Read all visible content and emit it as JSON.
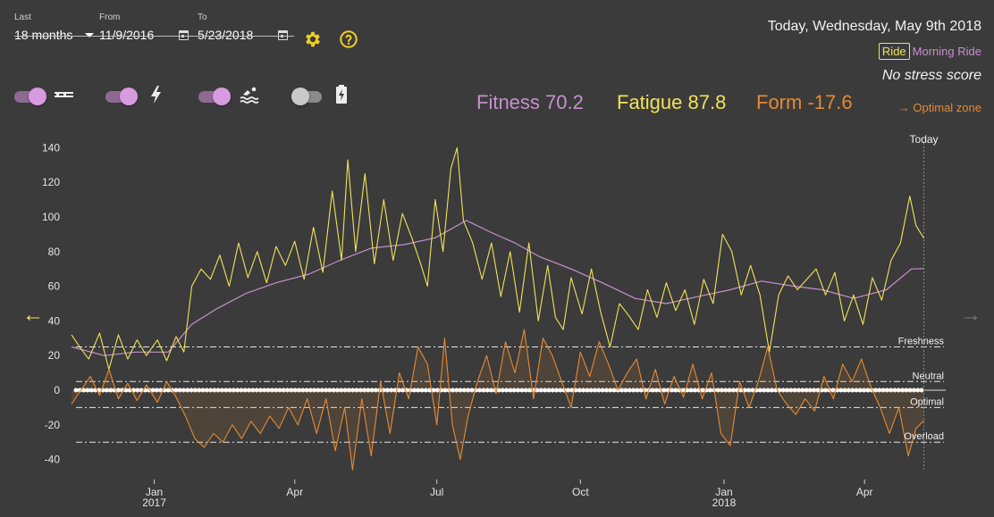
{
  "filters": {
    "last_label": "Last",
    "last_value": "18 months",
    "from_label": "From",
    "from_value": "11/9/2016",
    "to_label": "To",
    "to_value": "5/23/2018"
  },
  "toolbar": {
    "settings_icon": "gear-icon",
    "help_icon": "help-circle-icon"
  },
  "toggles": [
    {
      "icon": "cycling-icon",
      "on": true
    },
    {
      "icon": "running-icon",
      "on": true
    },
    {
      "icon": "swimming-icon",
      "on": true
    },
    {
      "icon": "battery-icon",
      "on": false
    }
  ],
  "header": {
    "today_text": "Today, Wednesday, May 9th 2018",
    "ride_badge": "Ride",
    "ride_title": "Morning Ride",
    "stress_text": "No stress score"
  },
  "metrics": {
    "fitness": "Fitness 70.2",
    "fatigue": "Fatigue 87.8",
    "form": "Form -17.6",
    "optimal_zone": "Optimal zone",
    "optimal_zone_icon": "arrow-right-icon"
  },
  "colors": {
    "fitness": "#c690cc",
    "fatigue": "#f0e25a",
    "form": "#e58a33",
    "background": "#3b3b3b"
  },
  "navigation": {
    "prev_icon": "arrow-left-icon",
    "next_icon": "arrow-right-icon"
  },
  "chart_data": {
    "type": "line",
    "x_axis_type": "date",
    "xlim": [
      "2016-11-09",
      "2018-05-23"
    ],
    "ylim": [
      -48,
      145
    ],
    "y_ticks": [
      140,
      120,
      100,
      80,
      60,
      40,
      20,
      0,
      -20,
      -40
    ],
    "x_ticks": [
      {
        "date": "2017-01-01",
        "label": "Jan",
        "sublabel": "2017"
      },
      {
        "date": "2017-04-01",
        "label": "Apr",
        "sublabel": ""
      },
      {
        "date": "2017-07-01",
        "label": "Jul",
        "sublabel": ""
      },
      {
        "date": "2017-10-01",
        "label": "Oct",
        "sublabel": ""
      },
      {
        "date": "2018-01-01",
        "label": "Jan",
        "sublabel": "2018"
      },
      {
        "date": "2018-04-01",
        "label": "Apr",
        "sublabel": ""
      }
    ],
    "today_marker": {
      "date": "2018-05-09",
      "label": "Today"
    },
    "zones": [
      {
        "label": "Freshness",
        "value": 25
      },
      {
        "label": "Neutral",
        "value": 5
      },
      {
        "label": "Optimal",
        "value": -10
      },
      {
        "label": "Overload",
        "value": -30
      }
    ],
    "series": [
      {
        "name": "Fitness",
        "color": "#c690cc",
        "points": [
          [
            "2016-11-09",
            25
          ],
          [
            "2016-11-30",
            20
          ],
          [
            "2016-12-20",
            22
          ],
          [
            "2017-01-10",
            22
          ],
          [
            "2017-01-25",
            38
          ],
          [
            "2017-02-10",
            47
          ],
          [
            "2017-03-01",
            56
          ],
          [
            "2017-03-20",
            62
          ],
          [
            "2017-04-10",
            67
          ],
          [
            "2017-04-30",
            75
          ],
          [
            "2017-05-20",
            82
          ],
          [
            "2017-06-10",
            84
          ],
          [
            "2017-06-30",
            88
          ],
          [
            "2017-07-20",
            98
          ],
          [
            "2017-08-05",
            91
          ],
          [
            "2017-08-20",
            85
          ],
          [
            "2017-09-05",
            77
          ],
          [
            "2017-09-25",
            70
          ],
          [
            "2017-10-15",
            62
          ],
          [
            "2017-11-05",
            53
          ],
          [
            "2017-11-25",
            50
          ],
          [
            "2017-12-15",
            54
          ],
          [
            "2018-01-05",
            58
          ],
          [
            "2018-01-25",
            63
          ],
          [
            "2018-02-15",
            60
          ],
          [
            "2018-03-05",
            58
          ],
          [
            "2018-03-25",
            53
          ],
          [
            "2018-04-15",
            58
          ],
          [
            "2018-05-01",
            70
          ],
          [
            "2018-05-09",
            70.2
          ]
        ]
      },
      {
        "name": "Fatigue",
        "color": "#f0e25a",
        "points": [
          [
            "2016-11-09",
            32
          ],
          [
            "2016-11-15",
            24
          ],
          [
            "2016-11-20",
            18
          ],
          [
            "2016-11-27",
            33
          ],
          [
            "2016-12-03",
            12
          ],
          [
            "2016-12-09",
            32
          ],
          [
            "2016-12-15",
            18
          ],
          [
            "2016-12-21",
            29
          ],
          [
            "2016-12-27",
            20
          ],
          [
            "2017-01-03",
            29
          ],
          [
            "2017-01-09",
            17
          ],
          [
            "2017-01-15",
            31
          ],
          [
            "2017-01-20",
            22
          ],
          [
            "2017-01-25",
            60
          ],
          [
            "2017-01-31",
            70
          ],
          [
            "2017-02-06",
            64
          ],
          [
            "2017-02-12",
            78
          ],
          [
            "2017-02-18",
            60
          ],
          [
            "2017-02-24",
            85
          ],
          [
            "2017-03-02",
            65
          ],
          [
            "2017-03-08",
            80
          ],
          [
            "2017-03-14",
            62
          ],
          [
            "2017-03-20",
            83
          ],
          [
            "2017-03-26",
            72
          ],
          [
            "2017-04-01",
            86
          ],
          [
            "2017-04-07",
            64
          ],
          [
            "2017-04-13",
            94
          ],
          [
            "2017-04-19",
            68
          ],
          [
            "2017-04-25",
            115
          ],
          [
            "2017-05-01",
            75
          ],
          [
            "2017-05-05",
            133
          ],
          [
            "2017-05-10",
            80
          ],
          [
            "2017-05-16",
            125
          ],
          [
            "2017-05-22",
            73
          ],
          [
            "2017-05-28",
            110
          ],
          [
            "2017-06-03",
            75
          ],
          [
            "2017-06-09",
            102
          ],
          [
            "2017-06-15",
            88
          ],
          [
            "2017-06-21",
            72
          ],
          [
            "2017-06-25",
            60
          ],
          [
            "2017-06-30",
            110
          ],
          [
            "2017-07-05",
            80
          ],
          [
            "2017-07-10",
            128
          ],
          [
            "2017-07-14",
            140
          ],
          [
            "2017-07-18",
            98
          ],
          [
            "2017-07-24",
            85
          ],
          [
            "2017-07-30",
            64
          ],
          [
            "2017-08-05",
            85
          ],
          [
            "2017-08-11",
            54
          ],
          [
            "2017-08-17",
            80
          ],
          [
            "2017-08-23",
            45
          ],
          [
            "2017-08-29",
            85
          ],
          [
            "2017-09-04",
            40
          ],
          [
            "2017-09-10",
            72
          ],
          [
            "2017-09-15",
            42
          ],
          [
            "2017-09-20",
            35
          ],
          [
            "2017-09-25",
            65
          ],
          [
            "2017-10-02",
            44
          ],
          [
            "2017-10-08",
            70
          ],
          [
            "2017-10-14",
            45
          ],
          [
            "2017-10-20",
            25
          ],
          [
            "2017-10-26",
            50
          ],
          [
            "2017-11-01",
            43
          ],
          [
            "2017-11-07",
            35
          ],
          [
            "2017-11-13",
            58
          ],
          [
            "2017-11-19",
            42
          ],
          [
            "2017-11-25",
            62
          ],
          [
            "2017-12-01",
            46
          ],
          [
            "2017-12-07",
            58
          ],
          [
            "2017-12-13",
            38
          ],
          [
            "2017-12-19",
            64
          ],
          [
            "2017-12-25",
            50
          ],
          [
            "2017-12-31",
            90
          ],
          [
            "2018-01-06",
            80
          ],
          [
            "2018-01-12",
            55
          ],
          [
            "2018-01-18",
            72
          ],
          [
            "2018-01-24",
            55
          ],
          [
            "2018-01-30",
            22
          ],
          [
            "2018-02-05",
            55
          ],
          [
            "2018-02-11",
            66
          ],
          [
            "2018-02-17",
            58
          ],
          [
            "2018-02-23",
            64
          ],
          [
            "2018-03-01",
            70
          ],
          [
            "2018-03-07",
            55
          ],
          [
            "2018-03-13",
            68
          ],
          [
            "2018-03-19",
            40
          ],
          [
            "2018-03-25",
            55
          ],
          [
            "2018-03-31",
            38
          ],
          [
            "2018-04-06",
            65
          ],
          [
            "2018-04-12",
            52
          ],
          [
            "2018-04-18",
            75
          ],
          [
            "2018-04-24",
            85
          ],
          [
            "2018-04-30",
            112
          ],
          [
            "2018-05-04",
            95
          ],
          [
            "2018-05-09",
            87.8
          ]
        ]
      },
      {
        "name": "Form",
        "color": "#e58a33",
        "points": [
          [
            "2016-11-09",
            -8
          ],
          [
            "2016-11-15",
            0
          ],
          [
            "2016-11-21",
            8
          ],
          [
            "2016-11-27",
            -3
          ],
          [
            "2016-12-03",
            12
          ],
          [
            "2016-12-09",
            -5
          ],
          [
            "2016-12-15",
            4
          ],
          [
            "2016-12-21",
            -6
          ],
          [
            "2016-12-27",
            3
          ],
          [
            "2017-01-03",
            -7
          ],
          [
            "2017-01-09",
            5
          ],
          [
            "2017-01-15",
            -4
          ],
          [
            "2017-01-21",
            -15
          ],
          [
            "2017-01-27",
            -28
          ],
          [
            "2017-02-02",
            -33
          ],
          [
            "2017-02-08",
            -25
          ],
          [
            "2017-02-14",
            -30
          ],
          [
            "2017-02-20",
            -20
          ],
          [
            "2017-02-26",
            -28
          ],
          [
            "2017-03-04",
            -18
          ],
          [
            "2017-03-10",
            -25
          ],
          [
            "2017-03-16",
            -15
          ],
          [
            "2017-03-22",
            -22
          ],
          [
            "2017-03-28",
            -10
          ],
          [
            "2017-04-03",
            -20
          ],
          [
            "2017-04-09",
            -5
          ],
          [
            "2017-04-15",
            -25
          ],
          [
            "2017-04-21",
            -5
          ],
          [
            "2017-04-27",
            -35
          ],
          [
            "2017-05-03",
            -10
          ],
          [
            "2017-05-08",
            -46
          ],
          [
            "2017-05-14",
            -5
          ],
          [
            "2017-05-20",
            -38
          ],
          [
            "2017-05-26",
            5
          ],
          [
            "2017-06-01",
            -25
          ],
          [
            "2017-06-07",
            10
          ],
          [
            "2017-06-13",
            -5
          ],
          [
            "2017-06-19",
            25
          ],
          [
            "2017-06-25",
            15
          ],
          [
            "2017-07-01",
            -20
          ],
          [
            "2017-07-06",
            30
          ],
          [
            "2017-07-11",
            -20
          ],
          [
            "2017-07-16",
            -40
          ],
          [
            "2017-07-21",
            -15
          ],
          [
            "2017-07-27",
            5
          ],
          [
            "2017-08-02",
            20
          ],
          [
            "2017-08-08",
            -2
          ],
          [
            "2017-08-14",
            28
          ],
          [
            "2017-08-20",
            10
          ],
          [
            "2017-08-26",
            35
          ],
          [
            "2017-09-01",
            -5
          ],
          [
            "2017-09-07",
            30
          ],
          [
            "2017-09-13",
            20
          ],
          [
            "2017-09-19",
            5
          ],
          [
            "2017-09-25",
            -10
          ],
          [
            "2017-10-01",
            22
          ],
          [
            "2017-10-07",
            8
          ],
          [
            "2017-10-13",
            28
          ],
          [
            "2017-10-19",
            15
          ],
          [
            "2017-10-25",
            0
          ],
          [
            "2017-10-31",
            10
          ],
          [
            "2017-11-06",
            18
          ],
          [
            "2017-11-12",
            -5
          ],
          [
            "2017-11-18",
            12
          ],
          [
            "2017-11-24",
            -8
          ],
          [
            "2017-11-30",
            8
          ],
          [
            "2017-12-06",
            -4
          ],
          [
            "2017-12-12",
            15
          ],
          [
            "2017-12-18",
            -5
          ],
          [
            "2017-12-24",
            10
          ],
          [
            "2017-12-30",
            -25
          ],
          [
            "2018-01-05",
            -32
          ],
          [
            "2018-01-11",
            5
          ],
          [
            "2018-01-17",
            -10
          ],
          [
            "2018-01-23",
            5
          ],
          [
            "2018-01-29",
            25
          ],
          [
            "2018-02-04",
            0
          ],
          [
            "2018-02-10",
            -8
          ],
          [
            "2018-02-16",
            -14
          ],
          [
            "2018-02-22",
            -5
          ],
          [
            "2018-02-28",
            -12
          ],
          [
            "2018-03-06",
            8
          ],
          [
            "2018-03-12",
            -5
          ],
          [
            "2018-03-18",
            15
          ],
          [
            "2018-03-24",
            5
          ],
          [
            "2018-03-30",
            18
          ],
          [
            "2018-04-05",
            2
          ],
          [
            "2018-04-11",
            -10
          ],
          [
            "2018-04-17",
            -25
          ],
          [
            "2018-04-23",
            -10
          ],
          [
            "2018-04-29",
            -38
          ],
          [
            "2018-05-04",
            -22
          ],
          [
            "2018-05-09",
            -17.6
          ]
        ]
      }
    ]
  }
}
